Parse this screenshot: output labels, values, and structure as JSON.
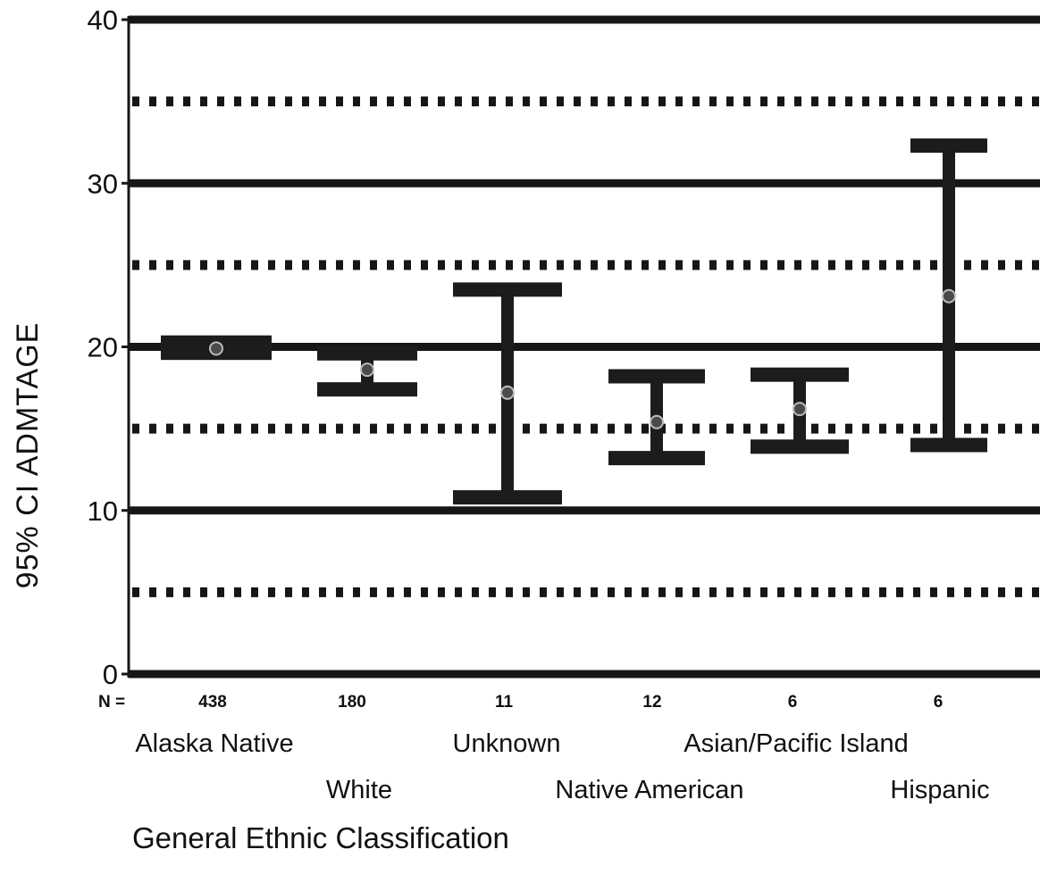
{
  "chart_data": {
    "type": "errorbar",
    "xlabel": "General Ethnic Classification",
    "ylabel": "95% CI ADMTAGE",
    "ylim": [
      0,
      40
    ],
    "yticks": [
      0,
      10,
      20,
      30,
      40
    ],
    "grid": {
      "solid": [
        0,
        10,
        20,
        30,
        40
      ],
      "dotted": [
        5,
        15,
        25,
        35
      ]
    },
    "n_label": "N =",
    "categories": [
      "Alaska Native",
      "White",
      "Unknown",
      "Native American",
      "Asian/Pacific Island",
      "Hispanic"
    ],
    "n": [
      "438",
      "180",
      "11",
      "12",
      "6",
      "6"
    ],
    "mean": [
      19.9,
      18.6,
      17.2,
      15.4,
      16.2,
      23.1
    ],
    "lower": [
      19.2,
      17.4,
      10.8,
      13.2,
      13.9,
      14.0
    ],
    "upper": [
      20.7,
      19.6,
      23.5,
      18.2,
      18.3,
      32.3
    ]
  }
}
